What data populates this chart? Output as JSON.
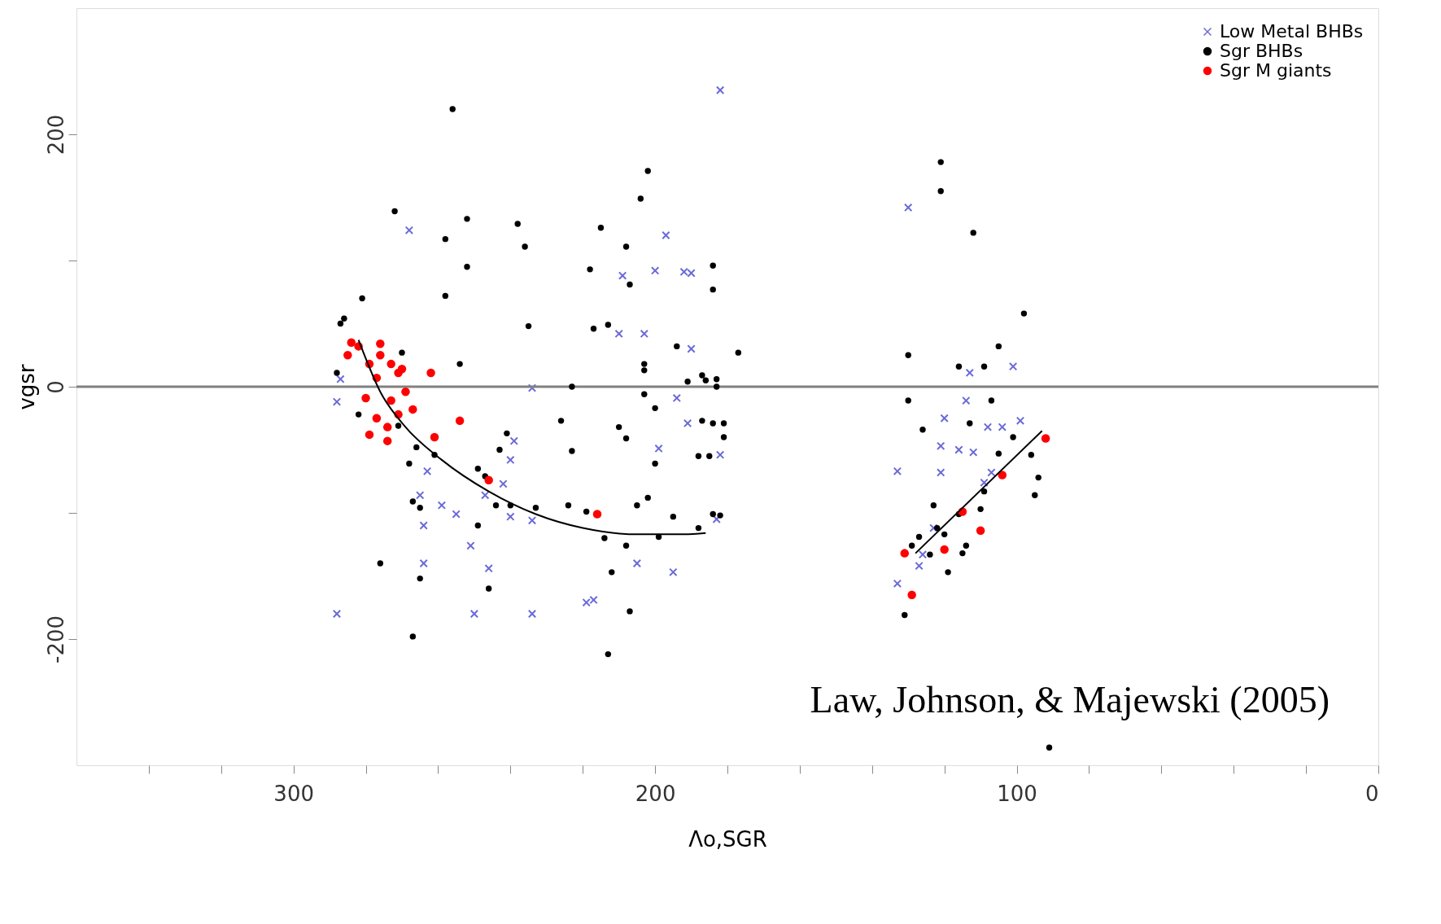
{
  "chart_data": {
    "type": "scatter",
    "xlabel": "Λo,SGR",
    "ylabel": "vgsr",
    "xlim": [
      360,
      0
    ],
    "ylim": [
      -300,
      300
    ],
    "xticks": [
      {
        "value": 340,
        "label": null
      },
      {
        "value": 320,
        "label": null
      },
      300,
      {
        "value": 280,
        "label": null
      },
      {
        "value": 260,
        "label": null
      },
      {
        "value": 240,
        "label": null
      },
      {
        "value": 220,
        "label": null
      },
      200,
      {
        "value": 180,
        "label": null
      },
      {
        "value": 160,
        "label": null
      },
      {
        "value": 140,
        "label": null
      },
      {
        "value": 120,
        "label": null
      },
      100,
      {
        "value": 80,
        "label": null
      },
      {
        "value": 60,
        "label": null
      },
      {
        "value": 40,
        "label": null
      },
      {
        "value": 20,
        "label": null
      },
      0
    ],
    "yticks": [
      -200,
      {
        "value": -100,
        "label": null
      },
      0,
      {
        "value": 100,
        "label": null
      },
      200
    ],
    "grid": false,
    "legend": "top right",
    "ref_lines": [
      {
        "axis": "y",
        "value": 0,
        "color": "#808080"
      }
    ],
    "annotations": [
      "Law, Johnson, & Majewski (2005)"
    ],
    "series": [
      {
        "name": "Low Metal BHBs",
        "color": "#6a6ad8",
        "marker": "cross",
        "x": [
          182,
          268,
          197,
          192,
          190,
          200,
          209,
          210,
          203,
          190,
          194,
          199,
          191,
          182,
          183,
          205,
          195,
          217,
          219,
          234,
          234,
          234,
          250,
          246,
          251,
          255,
          259,
          265,
          264,
          264,
          263,
          247,
          239,
          240,
          242,
          240,
          288,
          287,
          288,
          133,
          130,
          120,
          113,
          101,
          114,
          108,
          112,
          109,
          116,
          121,
          121,
          99,
          104,
          107,
          123,
          133,
          127,
          126
        ],
        "values": [
          235,
          124,
          120,
          91,
          90,
          92,
          88,
          42,
          42,
          30,
          -9,
          -49,
          -29,
          -54,
          -105,
          -140,
          -147,
          -169,
          -171,
          -1,
          -106,
          -180,
          -180,
          -144,
          -126,
          -101,
          -94,
          -86,
          -110,
          -140,
          -67,
          -86,
          -43,
          -58,
          -77,
          -103,
          -180,
          6,
          -12,
          -67,
          142,
          -25,
          11,
          16,
          -11,
          -32,
          -52,
          -76,
          -50,
          -47,
          -68,
          -27,
          -32,
          -68,
          -112,
          -156,
          -142,
          -133
        ]
      },
      {
        "name": "Sgr BHBs",
        "color": "#000000",
        "marker": "circle",
        "x": [
          256,
          258,
          252,
          252,
          258,
          272,
          281,
          287,
          286,
          238,
          236,
          235,
          254,
          218,
          217,
          213,
          215,
          208,
          207,
          202,
          204,
          203,
          203,
          194,
          191,
          184,
          184,
          177,
          186,
          183,
          187,
          183,
          184,
          181,
          187,
          181,
          188,
          185,
          203,
          200,
          200,
          202,
          205,
          210,
          208,
          223,
          226,
          223,
          224,
          219,
          214,
          212,
          207,
          213,
          208,
          199,
          195,
          184,
          182,
          188,
          240,
          233,
          241,
          243,
          249,
          247,
          244,
          249,
          246,
          267,
          276,
          265,
          267,
          265,
          268,
          266,
          261,
          271,
          270,
          288,
          282,
          130,
          130,
          121,
          121,
          112,
          98,
          105,
          126,
          116,
          109,
          113,
          107,
          105,
          129,
          127,
          122,
          120,
          116,
          110,
          109,
          101,
          96,
          94,
          95,
          119,
          115,
          114,
          131,
          91,
          123,
          124
        ],
        "values": [
          220,
          117,
          133,
          95,
          72,
          139,
          70,
          50,
          54,
          129,
          111,
          48,
          18,
          93,
          46,
          49,
          126,
          111,
          81,
          171,
          149,
          13,
          18,
          32,
          4,
          96,
          77,
          27,
          5,
          6,
          9,
          0,
          -29,
          -29,
          -27,
          -40,
          -55,
          -55,
          -6,
          -17,
          -61,
          -88,
          -94,
          -32,
          -41,
          0,
          -27,
          -51,
          -94,
          -99,
          -120,
          -147,
          -178,
          -212,
          -126,
          -119,
          -103,
          -101,
          -102,
          -112,
          -94,
          -96,
          -37,
          -50,
          -65,
          -71,
          -94,
          -110,
          -160,
          -198,
          -140,
          -152,
          -91,
          -96,
          -61,
          -48,
          -54,
          -31,
          27,
          11,
          -22,
          -11,
          25,
          178,
          155,
          122,
          58,
          32,
          -34,
          16,
          16,
          -29,
          -11,
          -53,
          -126,
          -119,
          -112,
          -117,
          -101,
          -97,
          -83,
          -40,
          -54,
          -72,
          -86,
          -147,
          -132,
          -126,
          -181,
          -286,
          -94,
          -133
        ]
      },
      {
        "name": "Sgr M giants",
        "color": "#ff0000",
        "marker": "circle",
        "x": [
          284,
          282,
          285,
          276,
          276,
          273,
          271,
          279,
          277,
          270,
          269,
          273,
          280,
          277,
          274,
          271,
          267,
          279,
          274,
          262,
          261,
          254,
          246,
          216,
          131,
          129,
          120,
          115,
          110,
          104,
          92
        ],
        "values": [
          35,
          32,
          25,
          34,
          25,
          18,
          11,
          18,
          7,
          14,
          -4,
          -11,
          -9,
          -25,
          -32,
          -22,
          -18,
          -38,
          -43,
          11,
          -40,
          -27,
          -74,
          -101,
          -132,
          -165,
          -129,
          -99,
          -114,
          -70,
          -41
        ]
      },
      {
        "type": "line",
        "color": "#000000",
        "x": [
          282,
          276,
          269,
          259,
          246,
          233,
          220,
          205,
          192,
          186
        ],
        "values": [
          37,
          -4,
          -32,
          -58,
          -83,
          -101,
          -112,
          -117,
          -117,
          -116
        ]
      },
      {
        "type": "line",
        "color": "#000000",
        "x": [
          128,
          93
        ],
        "values": [
          -132,
          -35
        ]
      }
    ]
  }
}
